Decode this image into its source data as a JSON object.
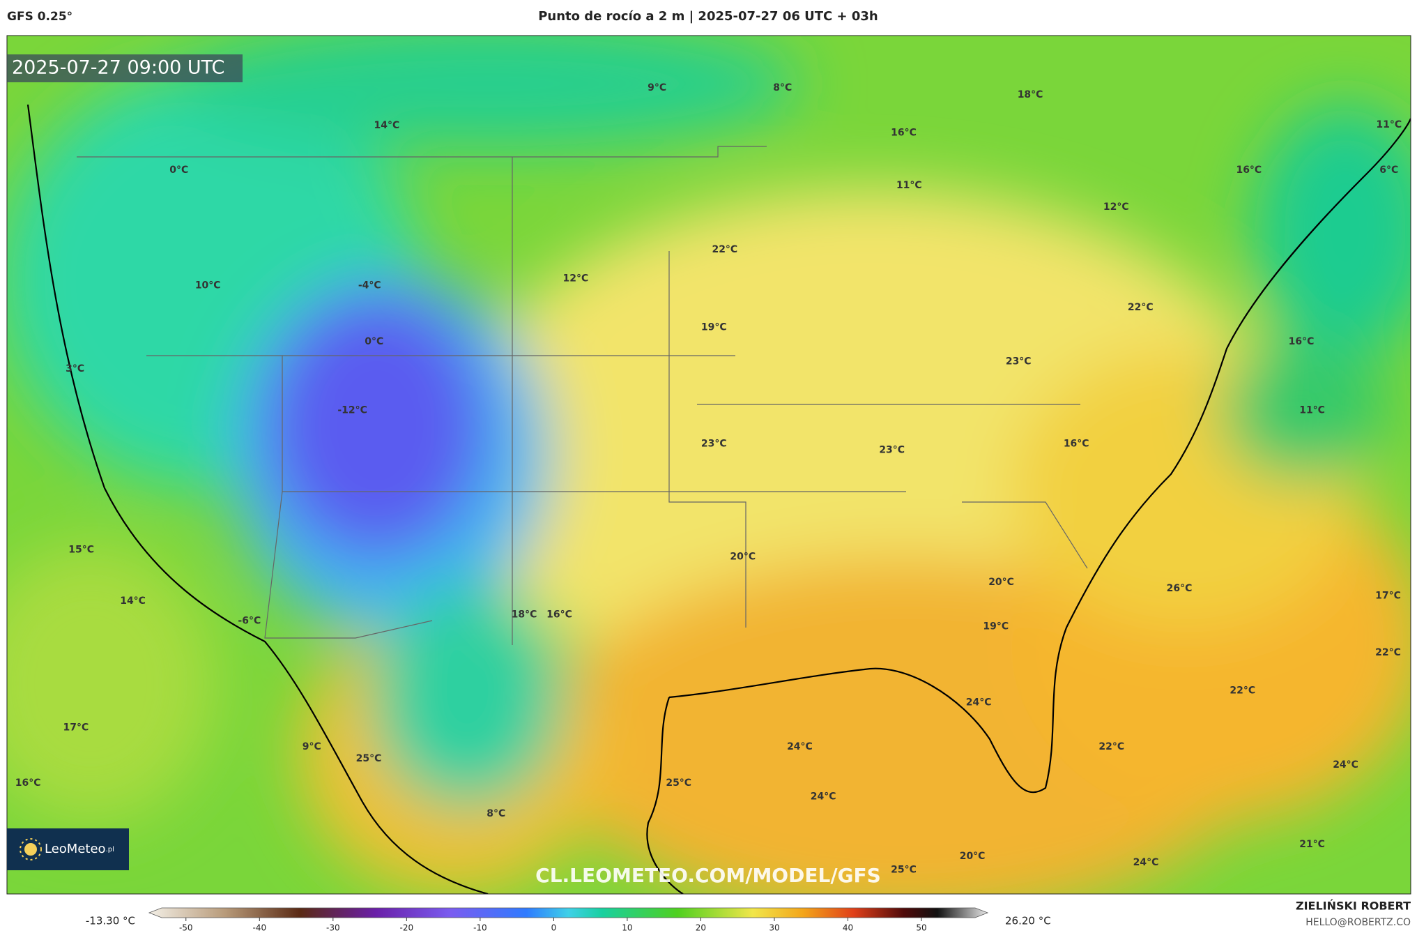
{
  "header": {
    "model": "GFS 0.25°",
    "title": "Punto de rocío a 2 m | 2025-07-27 06 UTC + 03h"
  },
  "map": {
    "valid_time": "2025-07-27 09:00 UTC",
    "labels": [
      "9°C",
      "8°C",
      "18°C",
      "14°C",
      "16°C",
      "0°C",
      "11°C",
      "16°C",
      "6°C",
      "11°C",
      "12°C",
      "22°C",
      "12°C",
      "-4°C",
      "10°C",
      "0°C",
      "19°C",
      "22°C",
      "16°C",
      "3°C",
      "23°C",
      "-12°C",
      "11°C",
      "23°C",
      "23°C",
      "16°C",
      "15°C",
      "20°C",
      "20°C",
      "26°C",
      "17°C",
      "14°C",
      "18°C",
      "16°C",
      "-6°C",
      "19°C",
      "22°C",
      "22°C",
      "24°C",
      "17°C",
      "24°C",
      "9°C",
      "22°C",
      "25°C",
      "24°C",
      "16°C",
      "25°C",
      "24°C",
      "8°C",
      "21°C",
      "20°C",
      "24°C",
      "25°C"
    ],
    "watermark": "CL.LEOMETEO.COM/MODEL/GFS",
    "logo": {
      "name": "LeoMeteo",
      "suffix": ".pl"
    }
  },
  "colorbar": {
    "min_label": "-13.30 °C",
    "max_label": "26.20 °C",
    "lim": [
      -55,
      59
    ],
    "ticks": [
      -50,
      -40,
      -30,
      -20,
      -10,
      0,
      10,
      20,
      30,
      40,
      50
    ]
  },
  "credits": {
    "author": "ZIELIŃSKI ROBERT",
    "contact": "HELLO@ROBERTZ.CO"
  }
}
